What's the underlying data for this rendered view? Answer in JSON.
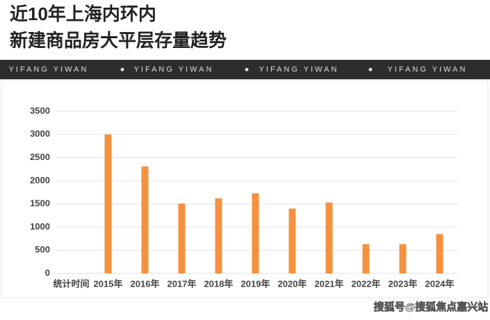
{
  "header": {
    "title_lines": [
      "近10年上海内环内",
      "新建商品房大平层存量趋势"
    ],
    "band": [
      "YIFANG YIWAN",
      "YIFANG YIWAN",
      "YIFANG YIWAN",
      "YIFANG YIWAN"
    ]
  },
  "chart_data": {
    "type": "bar",
    "categories": [
      "统计时间",
      "2015年",
      "2016年",
      "2017年",
      "2018年",
      "2019年",
      "2020年",
      "2021年",
      "2022年",
      "2023年",
      "2024年"
    ],
    "values": [
      null,
      3000,
      2310,
      1510,
      1620,
      1730,
      1400,
      1530,
      630,
      630,
      850
    ],
    "color": "#f5913e",
    "ylim": [
      0,
      3500
    ],
    "yticks": [
      0,
      500,
      1000,
      1500,
      2000,
      2500,
      3000,
      3500
    ],
    "grid": true
  },
  "footer": {
    "watermark": "搜狐号@搜狐焦点嘉兴站"
  }
}
